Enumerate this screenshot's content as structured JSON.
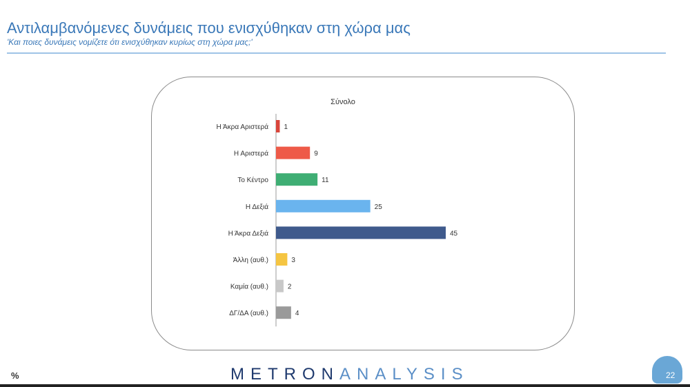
{
  "header": {
    "title": "Αντιλαμβανόμενες δυνάμεις που ενισχύθηκαν στη χώρα μας",
    "subtitle": "'Και ποιες δυνάμεις νομίζετε ότι ενισχύθηκαν κυρίως στη χώρα μας;'"
  },
  "footer": {
    "brand_bold": "METRON",
    "brand_light": "ANALYSIS",
    "page_number": "22",
    "percent_icon": "percent-icon",
    "badge_color": "#6aa7d6"
  },
  "chart_data": {
    "type": "bar",
    "orientation": "horizontal",
    "title": "Σύνολο",
    "categories": [
      "Η Άκρα Αριστερά",
      "Η Αριστερά",
      "Το Κέντρο",
      "Η Δεξιά",
      "Η Άκρα Δεξιά",
      "Άλλη (αυθ.)",
      "Καμία (αυθ.)",
      "ΔΓ/ΔΑ (αυθ.)"
    ],
    "values": [
      1,
      9,
      11,
      25,
      45,
      3,
      2,
      4
    ],
    "colors": [
      "#d9453b",
      "#ee5a48",
      "#3fae74",
      "#6ab4ee",
      "#3f5a8c",
      "#f5c542",
      "#c8c8c8",
      "#9a9a9a"
    ],
    "xlim": [
      0,
      45
    ],
    "grid": false,
    "data_labels": true
  }
}
